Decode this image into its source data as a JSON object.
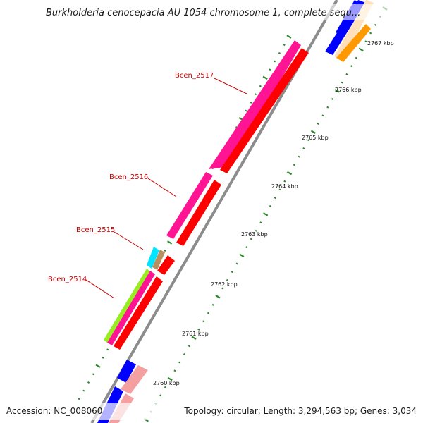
{
  "title": "Burkholderia cenocepacia AU 1054 chromosome 1, complete sequ...",
  "footer": {
    "accession": "Accession: NC_008060",
    "summary": "Topology: circular; Length: 3,294,563 bp; Genes: 3,034"
  },
  "kbp_labels": [
    "2760 kbp",
    "2761 kbp",
    "2762 kbp",
    "2763 kbp",
    "2764 kbp",
    "2765 kbp",
    "2766 kbp",
    "2767 kbp"
  ],
  "gene_labels": [
    "Bcen_2517",
    "Bcen_2516",
    "Bcen_2515",
    "Bcen_2514"
  ],
  "colors": {
    "backbone": "#8c8c8c",
    "tick": "#2a8a2a",
    "label": "#cc0000",
    "cds_red": "#ff0000",
    "gene_magenta": "#ff1493",
    "gene_blue": "#0000ff",
    "gene_salmon": "#f4a0a0",
    "gene_orange": "#ff9900",
    "gene_peach": "#ffe0bb",
    "gene_cyan": "#00e5ff",
    "gene_lime": "#99ee22",
    "gene_tan": "#b89060"
  }
}
